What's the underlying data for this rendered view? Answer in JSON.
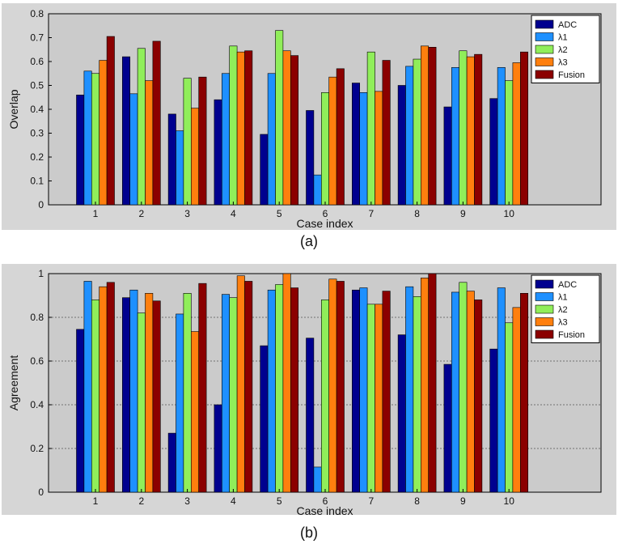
{
  "chart_data": [
    {
      "type": "bar",
      "categories": [
        "1",
        "2",
        "3",
        "4",
        "5",
        "6",
        "7",
        "8",
        "9",
        "10"
      ],
      "xlabel": "Case index",
      "ylabel": "Overlap",
      "ylim": [
        0,
        0.8
      ],
      "yticks": [
        "0",
        "0.1",
        "0.2",
        "0.3",
        "0.4",
        "0.5",
        "0.6",
        "0.7",
        "0.8"
      ],
      "ytick_values": [
        0,
        0.1,
        0.2,
        0.3,
        0.4,
        0.5,
        0.6,
        0.7,
        0.8
      ],
      "grid": false,
      "legend_position": "top-right",
      "caption": "(a)",
      "series": [
        {
          "name": "ADC",
          "color": "#00008f",
          "values": [
            0.46,
            0.62,
            0.38,
            0.44,
            0.295,
            0.395,
            0.51,
            0.5,
            0.41,
            0.445
          ]
        },
        {
          "name": "λ1",
          "color": "#1e90ff",
          "values": [
            0.56,
            0.465,
            0.31,
            0.55,
            0.55,
            0.125,
            0.47,
            0.58,
            0.575,
            0.575
          ]
        },
        {
          "name": "λ2",
          "color": "#90ee5a",
          "values": [
            0.55,
            0.655,
            0.53,
            0.665,
            0.73,
            0.47,
            0.64,
            0.61,
            0.645,
            0.52
          ]
        },
        {
          "name": "λ3",
          "color": "#ff7f0e",
          "values": [
            0.605,
            0.52,
            0.405,
            0.64,
            0.645,
            0.535,
            0.475,
            0.665,
            0.62,
            0.595
          ]
        },
        {
          "name": "Fusion",
          "color": "#8b0000",
          "values": [
            0.705,
            0.685,
            0.535,
            0.645,
            0.625,
            0.57,
            0.605,
            0.66,
            0.63,
            0.64
          ]
        }
      ]
    },
    {
      "type": "bar",
      "categories": [
        "1",
        "2",
        "3",
        "4",
        "5",
        "6",
        "7",
        "8",
        "9",
        "10"
      ],
      "xlabel": "Case index",
      "ylabel": "Agreement",
      "ylim": [
        0,
        1
      ],
      "yticks": [
        "0",
        "0.2",
        "0.4",
        "0.6",
        "0.8",
        "1"
      ],
      "ytick_values": [
        0,
        0.2,
        0.4,
        0.6,
        0.8,
        1
      ],
      "grid": true,
      "legend_position": "top-right",
      "caption": "(b)",
      "series": [
        {
          "name": "ADC",
          "color": "#00008f",
          "values": [
            0.745,
            0.89,
            0.27,
            0.4,
            0.67,
            0.705,
            0.925,
            0.72,
            0.585,
            0.655
          ]
        },
        {
          "name": "λ1",
          "color": "#1e90ff",
          "values": [
            0.965,
            0.925,
            0.815,
            0.905,
            0.925,
            0.115,
            0.935,
            0.94,
            0.915,
            0.935
          ]
        },
        {
          "name": "λ2",
          "color": "#90ee5a",
          "values": [
            0.88,
            0.82,
            0.91,
            0.89,
            0.95,
            0.88,
            0.86,
            0.895,
            0.96,
            0.775
          ]
        },
        {
          "name": "λ3",
          "color": "#ff7f0e",
          "values": [
            0.94,
            0.91,
            0.735,
            0.99,
            1.0,
            0.975,
            0.86,
            0.98,
            0.92,
            0.845
          ]
        },
        {
          "name": "Fusion",
          "color": "#8b0000",
          "values": [
            0.96,
            0.875,
            0.955,
            0.965,
            0.935,
            0.965,
            0.92,
            1.0,
            0.88,
            0.91
          ]
        }
      ]
    }
  ]
}
